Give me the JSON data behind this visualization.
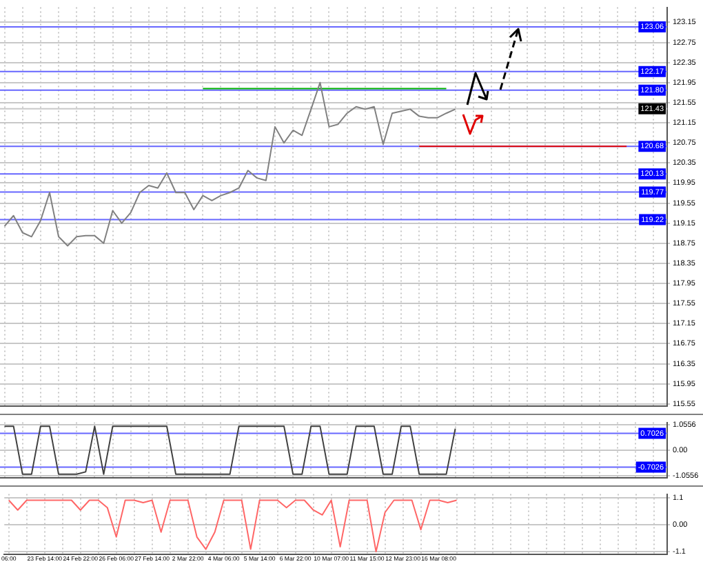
{
  "chart_data": [
    {
      "type": "line",
      "series": [
        {
          "color": "#808080",
          "values": [
            119.09,
            119.3,
            118.96,
            118.88,
            119.2,
            119.76,
            118.88,
            118.7,
            118.88,
            118.9,
            118.9,
            118.75,
            119.4,
            119.15,
            119.36,
            119.76,
            119.9,
            119.85,
            120.15,
            119.76,
            119.76,
            119.42,
            119.7,
            119.6,
            119.7,
            119.76,
            119.85,
            120.2,
            120.05,
            120.0,
            121.07,
            120.75,
            121.0,
            120.9,
            121.42,
            121.95,
            121.07,
            121.12,
            121.34,
            121.47,
            121.42,
            121.47,
            120.72,
            121.34,
            121.38,
            121.42,
            121.28,
            121.25,
            121.25,
            121.34,
            121.42,
            null,
            null,
            null,
            null,
            null,
            null,
            null,
            null,
            null,
            null,
            null,
            null,
            null,
            null,
            null,
            null,
            null,
            null,
            null,
            null,
            null,
            null,
            null
          ]
        },
        {
          "color": "#00b000",
          "values": [
            null,
            null,
            null,
            null,
            null,
            null,
            null,
            null,
            null,
            null,
            null,
            null,
            null,
            null,
            null,
            null,
            null,
            null,
            null,
            null,
            null,
            null,
            121.83,
            121.83,
            121.83,
            121.83,
            121.83,
            121.83,
            121.83,
            121.83,
            121.83,
            121.83,
            121.83,
            121.83,
            121.83,
            121.83,
            121.83,
            121.83,
            121.83,
            121.83,
            121.83,
            121.83,
            121.83,
            121.83,
            121.83,
            121.83,
            121.83,
            121.83,
            121.83,
            121.83,
            null,
            null,
            null,
            null,
            null,
            null,
            null,
            null,
            null,
            null,
            null,
            null,
            null,
            null,
            null,
            null,
            null,
            null,
            null,
            null,
            null,
            null,
            null,
            null
          ]
        },
        {
          "color": "#e00000",
          "values": [
            null,
            null,
            null,
            null,
            null,
            null,
            null,
            null,
            null,
            null,
            null,
            null,
            null,
            null,
            null,
            null,
            null,
            null,
            null,
            null,
            null,
            null,
            null,
            null,
            null,
            null,
            null,
            null,
            null,
            null,
            null,
            null,
            null,
            null,
            null,
            null,
            null,
            null,
            null,
            null,
            null,
            null,
            null,
            null,
            null,
            null,
            120.68,
            120.68,
            120.68,
            120.68,
            120.68,
            120.68,
            120.68,
            120.68,
            120.68,
            120.68,
            120.68,
            120.68,
            120.68,
            120.68,
            120.68,
            120.68,
            120.68,
            120.68,
            120.68,
            120.68,
            120.68,
            120.68,
            120.68,
            120.68,
            null,
            null,
            null,
            null
          ]
        }
      ],
      "ylim": [
        115.5,
        123.45
      ],
      "yticks": [
        123.15,
        122.75,
        122.35,
        121.95,
        121.55,
        121.15,
        120.75,
        120.35,
        119.95,
        119.55,
        119.15,
        118.75,
        118.35,
        117.95,
        117.55,
        117.15,
        116.75,
        116.35,
        115.95,
        115.55
      ],
      "ref_lines": [
        {
          "axis": "y",
          "value": 123.06,
          "label": "123.06",
          "color": "#6666ff"
        },
        {
          "axis": "y",
          "value": 122.17,
          "label": "122.17",
          "color": "#6666ff"
        },
        {
          "axis": "y",
          "value": 121.8,
          "label": "121.80",
          "color": "#6666ff"
        },
        {
          "axis": "y",
          "value": 121.43,
          "label": "121.43",
          "color": "#c8c8c8"
        },
        {
          "axis": "y",
          "value": 120.68,
          "label": "120.68",
          "color": "#6666ff"
        },
        {
          "axis": "y",
          "value": 120.13,
          "label": "120.13",
          "color": "#6666ff"
        },
        {
          "axis": "y",
          "value": 119.77,
          "label": "119.77",
          "color": "#6666ff"
        },
        {
          "axis": "y",
          "value": 119.22,
          "label": "119.22",
          "color": "#6666ff"
        }
      ],
      "grid": true,
      "legend": false,
      "marker": "none",
      "tick_labels": "y"
    },
    {
      "type": "line",
      "series": [
        {
          "color": "#404040",
          "values": [
            1.0,
            1.0,
            -1.0,
            -1.0,
            1.0,
            1.0,
            -1.0,
            -1.0,
            -1.0,
            -0.9,
            1.0,
            -1.0,
            1.0,
            1.0,
            1.0,
            1.0,
            1.0,
            1.0,
            1.0,
            -1.0,
            -1.0,
            -1.0,
            -1.0,
            -1.0,
            -1.0,
            -1.0,
            1.0,
            1.0,
            1.0,
            1.0,
            1.0,
            1.0,
            -1.0,
            -1.0,
            1.0,
            1.0,
            -1.0,
            -1.0,
            -1.0,
            1.0,
            1.0,
            1.0,
            -1.0,
            -1.0,
            1.0,
            1.0,
            -1.0,
            -1.0,
            -1.0,
            -1.0,
            0.9,
            null,
            null,
            null,
            null,
            null,
            null,
            null,
            null,
            null,
            null,
            null,
            null,
            null,
            null,
            null,
            null,
            null,
            null,
            null,
            null,
            null,
            null,
            null
          ]
        }
      ],
      "ylim": [
        -1.16,
        1.16
      ],
      "yticks": [
        1.0556,
        {
          "value": 0,
          "label": "0.00"
        },
        -1.0556
      ],
      "ref_lines": [
        {
          "axis": "y",
          "value": 0.7026,
          "label": "0.7026",
          "color": "#6666ff"
        },
        {
          "axis": "y",
          "value": -0.7026,
          "label": "-0.7026",
          "color": "#6666ff"
        }
      ],
      "grid": true,
      "legend": false,
      "marker": "none",
      "tick_labels": "y"
    },
    {
      "type": "line",
      "categories": [
        "06:00",
        null,
        null,
        null,
        "23 Feb 14:00",
        null,
        null,
        null,
        "24 Feb 22:00",
        null,
        null,
        null,
        "26 Feb 06:00",
        null,
        null,
        null,
        "27 Feb 14:00",
        null,
        null,
        null,
        "2 Mar 22:00",
        null,
        null,
        null,
        "4 Mar 06:00",
        null,
        null,
        null,
        "5 Mar 14:00",
        null,
        null,
        null,
        "6 Mar 22:00",
        null,
        null,
        null,
        "10 Mar 07:00",
        null,
        null,
        null,
        "11 Mar 15:00",
        null,
        null,
        null,
        "12 Mar 23:00",
        null,
        null,
        null,
        "16 Mar 08:00",
        null,
        null,
        null,
        null,
        null,
        null,
        null,
        null,
        null,
        null,
        null,
        null,
        null,
        null,
        null,
        null,
        null,
        null,
        null,
        null,
        null,
        null,
        null,
        null,
        null
      ],
      "series": [
        {
          "color": "#ff6666",
          "values": [
            1.0,
            0.6,
            1.0,
            1.0,
            1.0,
            1.0,
            1.0,
            1.0,
            0.6,
            1.0,
            1.0,
            0.7,
            -0.5,
            1.0,
            1.0,
            0.9,
            1.0,
            -0.3,
            1.0,
            1.0,
            1.0,
            -0.5,
            -1.0,
            -0.3,
            1.0,
            1.0,
            1.0,
            -1.0,
            1.0,
            1.0,
            1.0,
            0.7,
            1.0,
            1.0,
            0.6,
            0.4,
            1.0,
            -0.9,
            1.0,
            1.0,
            1.0,
            -1.1,
            0.5,
            1.0,
            1.0,
            1.0,
            -0.2,
            1.0,
            1.0,
            0.9,
            1.0,
            null,
            null,
            null,
            null,
            null,
            null,
            null,
            null,
            null,
            null,
            null,
            null,
            null,
            null,
            null,
            null,
            null,
            null,
            null,
            null,
            null,
            null,
            null
          ]
        }
      ],
      "ylim": [
        -1.2,
        1.25
      ],
      "yticks": [
        1.1,
        {
          "value": 0,
          "label": "0.00"
        },
        -1.1
      ],
      "grid": true,
      "legend": false,
      "marker": "none"
    }
  ]
}
